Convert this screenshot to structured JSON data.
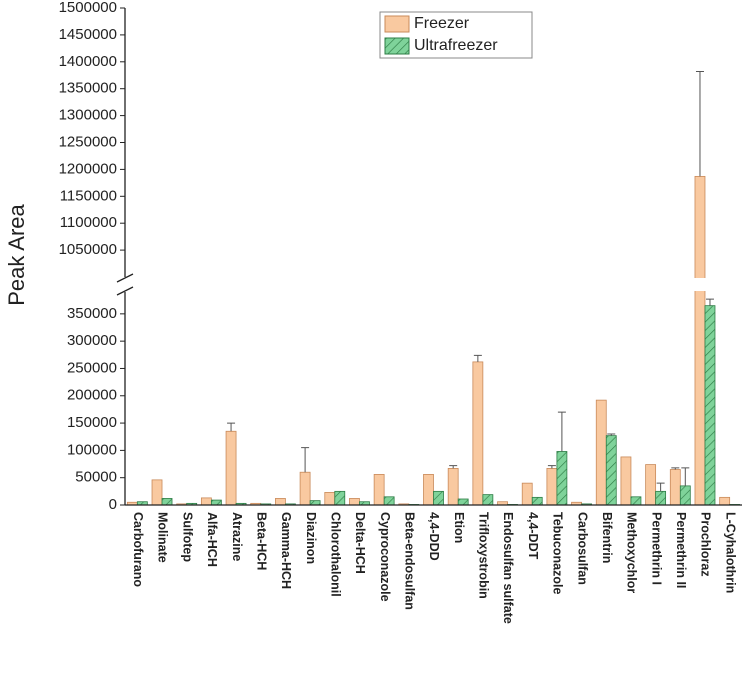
{
  "chart_data": {
    "type": "bar",
    "y_label": "Peak Area",
    "categories": [
      "Carbofurano",
      "Molinate",
      "Sulfotep",
      "Alfa-HCH",
      "Atrazine",
      "Beta-HCH",
      "Gamma-HCH",
      "Diazinon",
      "Chlorothalonil",
      "Delta-HCH",
      "Cyproconazole",
      "Beta-endosulfan",
      "4,4-DDD",
      "Etion",
      "Trifloxystrobin",
      "Endosulfan sulfate",
      "4,4-DDT",
      "Tebuconazole",
      "Carbosulfan",
      "Bifentrin",
      "Methoxychlor",
      "Permethrin I",
      "Permethrin II",
      "Prochloraz",
      "L-Cyhalothrin"
    ],
    "series": [
      {
        "name": "Freezer",
        "color": "#f9c9a0",
        "hatch": false,
        "values": [
          5000,
          46000,
          2000,
          13000,
          135000,
          3000,
          12000,
          60000,
          23000,
          12000,
          56000,
          2000,
          56000,
          67000,
          262000,
          6000,
          40000,
          67000,
          5000,
          192000,
          88000,
          74000,
          65000,
          1187000,
          14000
        ],
        "errors": [
          null,
          null,
          null,
          null,
          15000,
          null,
          null,
          45000,
          null,
          null,
          null,
          null,
          null,
          5000,
          12000,
          null,
          null,
          5000,
          null,
          null,
          null,
          null,
          3000,
          195000,
          null
        ]
      },
      {
        "name": "Ultrafreezer",
        "color": "#7fd39a",
        "hatch": true,
        "values": [
          6000,
          12000,
          3000,
          9000,
          3000,
          2000,
          2000,
          8000,
          25000,
          6000,
          15000,
          1000,
          25000,
          11000,
          19000,
          1000,
          14000,
          98000,
          2000,
          127000,
          15000,
          25000,
          35000,
          365000,
          1000
        ],
        "errors": [
          null,
          null,
          null,
          null,
          null,
          null,
          null,
          null,
          null,
          null,
          null,
          null,
          null,
          null,
          null,
          null,
          null,
          72000,
          null,
          3000,
          null,
          15000,
          33000,
          12000,
          null
        ]
      }
    ],
    "ylim_lower": [
      0,
      390000
    ],
    "ylim_upper": [
      1000000,
      1500000
    ],
    "yticks": [
      0,
      50000,
      100000,
      150000,
      200000,
      250000,
      300000,
      350000,
      1050000,
      1100000,
      1150000,
      1200000,
      1250000,
      1300000,
      1350000,
      1400000,
      1450000,
      1500000
    ],
    "legend": "top",
    "grid": false
  }
}
